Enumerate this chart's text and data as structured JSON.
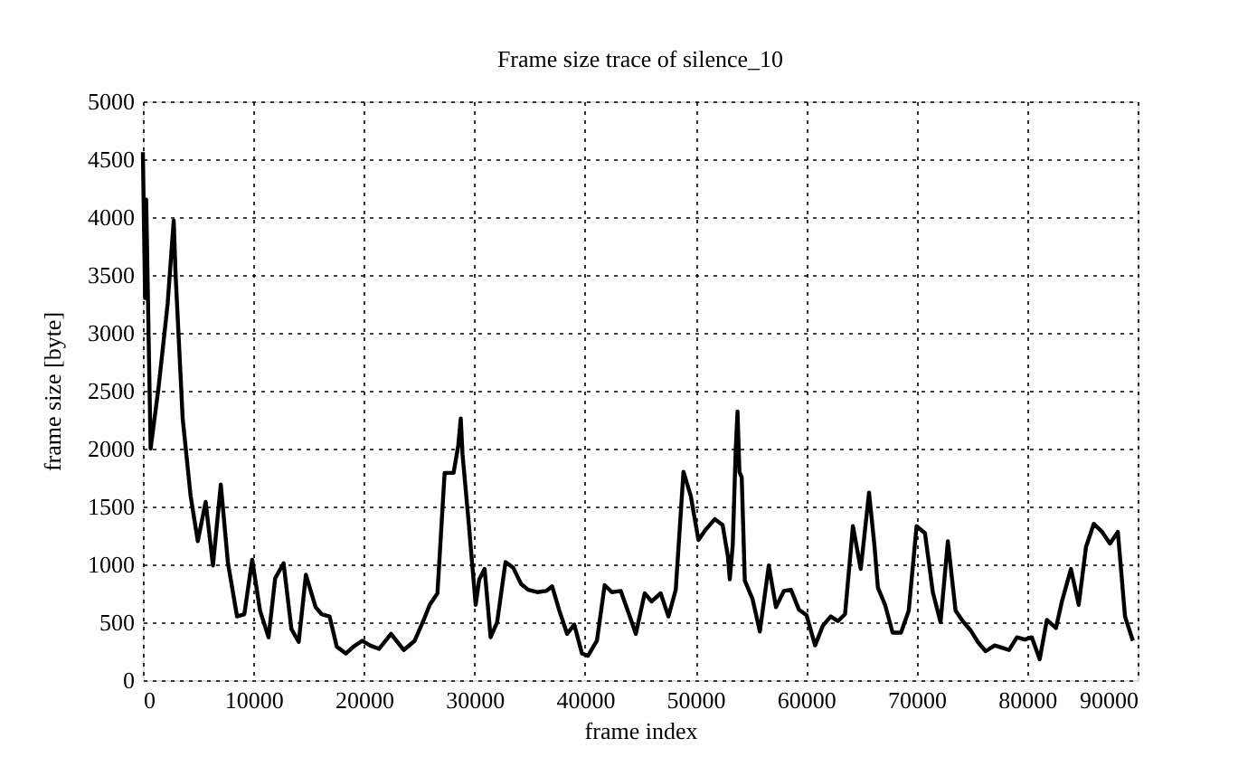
{
  "chart_data": {
    "type": "line",
    "title": "Frame size trace of silence_10",
    "xlabel": "frame index",
    "ylabel": "frame size [byte]",
    "series": [
      {
        "color": "#000000",
        "x": [
          0,
          200,
          300,
          700,
          1420,
          2240,
          2620,
          2790,
          2950,
          3600,
          4320,
          4970,
          5680,
          6340,
          7050,
          7700,
          8520,
          9180,
          9890,
          10600,
          11370,
          11970,
          12730,
          13440,
          14100,
          14750,
          15630,
          16170,
          16890,
          17540,
          18360,
          19070,
          19840,
          20550,
          21370,
          22450,
          23600,
          24590,
          25410,
          25950,
          26650,
          27300,
          28110,
          28540,
          28760,
          28920,
          29460,
          30110,
          30430,
          30920,
          31460,
          32050,
          32810,
          33510,
          34220,
          34860,
          35680,
          36490,
          37030,
          37680,
          38380,
          39030,
          39730,
          40270,
          41080,
          41780,
          42430,
          43240,
          44050,
          44600,
          45400,
          46030,
          46850,
          47550,
          48210,
          48910,
          49570,
          50270,
          50920,
          51740,
          52450,
          52930,
          53100,
          53370,
          53640,
          53800,
          53970,
          54180,
          54460,
          55160,
          55820,
          56630,
          57280,
          57990,
          58640,
          59350,
          60050,
          60820,
          61520,
          62230,
          62880,
          63530,
          64240,
          64950,
          65700,
          66200,
          66500,
          67150,
          67830,
          68590,
          69290,
          70000,
          70760,
          71470,
          72170,
          72830,
          73530,
          74180,
          74890,
          75540,
          76250,
          77070,
          77720,
          78370,
          79080,
          79780,
          80430,
          81140,
          81790,
          82610,
          83150,
          83970,
          84670,
          85330,
          86030,
          86790,
          87500,
          88210,
          88860,
          89570
        ],
        "values": [
          4560,
          3300,
          4150,
          2000,
          2530,
          3250,
          3750,
          3970,
          3520,
          2260,
          1590,
          1200,
          1540,
          990,
          1690,
          1010,
          550,
          570,
          1040,
          600,
          370,
          880,
          1010,
          440,
          330,
          910,
          630,
          570,
          550,
          290,
          230,
          290,
          340,
          300,
          270,
          400,
          260,
          340,
          520,
          650,
          750,
          1790,
          1790,
          2030,
          2260,
          1950,
          1380,
          650,
          870,
          960,
          370,
          500,
          1020,
          970,
          830,
          780,
          760,
          770,
          810,
          600,
          400,
          480,
          230,
          210,
          340,
          820,
          760,
          770,
          550,
          400,
          750,
          680,
          750,
          550,
          780,
          1800,
          1590,
          1210,
          1300,
          1390,
          1340,
          1070,
          870,
          1170,
          2000,
          2320,
          1800,
          1750,
          860,
          700,
          420,
          990,
          630,
          770,
          780,
          610,
          560,
          300,
          470,
          550,
          510,
          570,
          1330,
          960,
          1620,
          1150,
          800,
          650,
          410,
          410,
          600,
          1330,
          1270,
          760,
          500,
          1200,
          600,
          510,
          430,
          330,
          250,
          300,
          280,
          260,
          370,
          350,
          370,
          180,
          520,
          450,
          680,
          960,
          650,
          1150,
          1350,
          1280,
          1180,
          1280,
          550,
          340
        ]
      }
    ],
    "xlim": [
      0,
      90000
    ],
    "ylim": [
      0,
      5000
    ],
    "xticks": [
      0,
      10000,
      20000,
      30000,
      40000,
      50000,
      60000,
      70000,
      80000,
      90000
    ],
    "yticks": [
      0,
      500,
      1000,
      1500,
      2000,
      2500,
      3000,
      3500,
      4000,
      4500,
      5000
    ],
    "grid": true,
    "line_style": "solid"
  }
}
